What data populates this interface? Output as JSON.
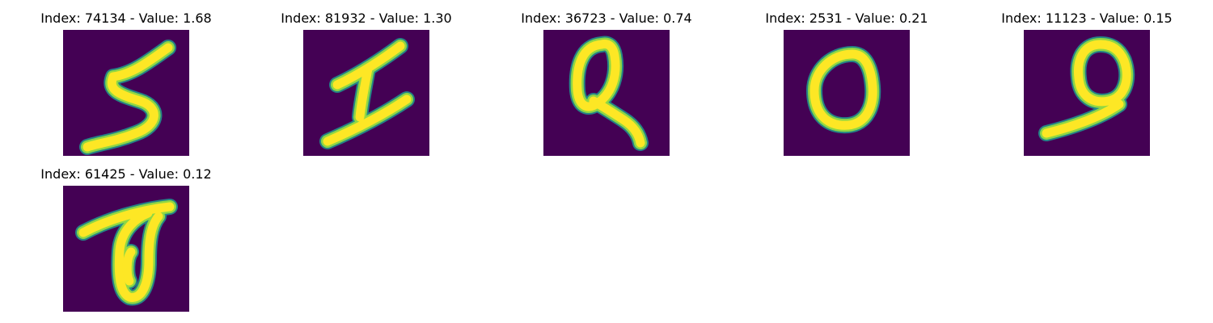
{
  "colors": {
    "background": "#440154",
    "stroke_core": "#fde725",
    "stroke_mid": "#8fd744",
    "stroke_edge": "#21918c"
  },
  "panels": [
    {
      "index": "74134",
      "value": "1.68",
      "title": "Index: 74134 - Value: 1.68",
      "glyph": "5"
    },
    {
      "index": "81932",
      "value": "1.30",
      "title": "Index: 81932 - Value: 1.30",
      "glyph": "I"
    },
    {
      "index": "36723",
      "value": "0.74",
      "title": "Index: 36723 - Value: 0.74",
      "glyph": "Q"
    },
    {
      "index": "2531",
      "value": "0.21",
      "title": "Index: 2531 - Value: 0.21",
      "glyph": "0"
    },
    {
      "index": "11123",
      "value": "0.15",
      "title": "Index: 11123 - Value: 0.15",
      "glyph": "9"
    },
    {
      "index": "61425",
      "value": "0.12",
      "title": "Index: 61425 - Value: 0.12",
      "glyph": "0"
    }
  ]
}
